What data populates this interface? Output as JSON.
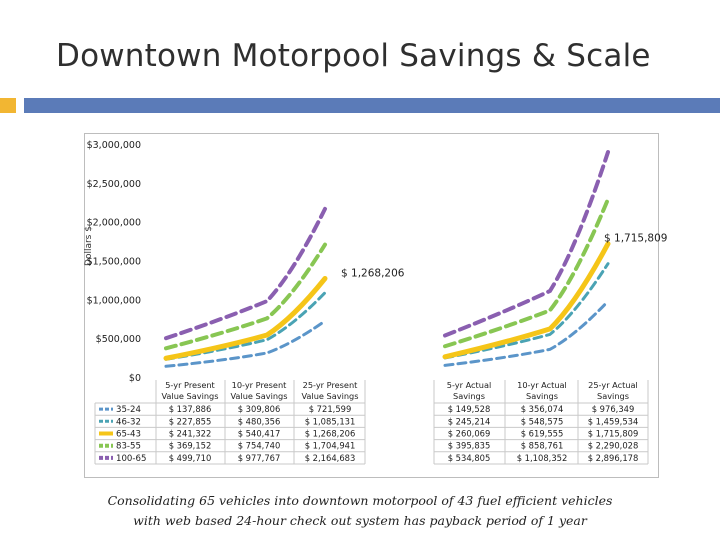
{
  "slide": {
    "title": "Downtown Motorpool Savings & Scale",
    "caption_line1": "Consolidating 65 vehicles into downtown motorpool of 43 fuel efficient vehicles",
    "caption_line2": "with web based 24-hour check out system has payback period of 1 year"
  },
  "colors": {
    "title_bar": "#5b7bb8",
    "accent_square": "#f2b632"
  },
  "chart_data": {
    "type": "line",
    "ylabel": "Dollars $",
    "ylim": [
      0,
      3000000
    ],
    "yticks": [
      0,
      500000,
      1000000,
      1500000,
      2000000,
      2500000,
      3000000
    ],
    "ytick_labels": [
      "$0",
      "$500,000",
      "$1,000,000",
      "$1,500,000",
      "$2,000,000",
      "$2,500,000",
      "$3,000,000"
    ],
    "grid": false,
    "x_groups": [
      {
        "name": "present",
        "categories": [
          "5-yr Present Value Savings",
          "10-yr Present Value Savings",
          "25-yr Present Value Savings"
        ]
      },
      {
        "name": "actual",
        "categories": [
          "5-yr Actual Savings",
          "10-yr Actual Savings",
          "25-yr Actual Savings"
        ]
      }
    ],
    "category_lines": [
      [
        "5-yr Present",
        "Value Savings"
      ],
      [
        "10-yr Present",
        "Value Savings"
      ],
      [
        "25-yr Present",
        "Value Savings"
      ],
      [
        "5-yr Actual",
        "Savings"
      ],
      [
        "10-yr Actual",
        "Savings"
      ],
      [
        "25-yr Actual",
        "Savings"
      ]
    ],
    "series": [
      {
        "name": "35-24",
        "color": "#5b95c9",
        "width": 3,
        "dash": "8 5",
        "values": [
          137886,
          309806,
          721599,
          149528,
          356074,
          976349
        ],
        "labels": [
          "$ 137,886",
          "$ 309,806",
          "$ 721,599",
          "$ 149,528",
          "$ 356,074",
          "$ 976,349"
        ]
      },
      {
        "name": "46-32",
        "color": "#4aa3b4",
        "width": 3,
        "dash": "8 5",
        "values": [
          227855,
          480356,
          1085131,
          245214,
          548575,
          1459534
        ],
        "labels": [
          "$ 227,855",
          "$ 480,356",
          "$ 1,085,131",
          "$ 245,214",
          "$ 548,575",
          "$ 1,459,534"
        ]
      },
      {
        "name": "65-43",
        "color": "#f5c518",
        "width": 5,
        "dash": "",
        "values": [
          241322,
          540417,
          1268206,
          260069,
          619555,
          1715809
        ],
        "labels": [
          "$ 241,322",
          "$ 540,417",
          "$ 1,268,206",
          "$ 260,069",
          "$ 619,555",
          "$ 1,715,809"
        ]
      },
      {
        "name": "83-55",
        "color": "#88c653",
        "width": 4,
        "dash": "10 6",
        "values": [
          369152,
          754740,
          1704941,
          395835,
          858761,
          2290028
        ],
        "labels": [
          "$ 369,152",
          "$ 754,740",
          "$ 1,704,941",
          "$ 395,835",
          "$ 858,761",
          "$ 2,290,028"
        ]
      },
      {
        "name": "100-65",
        "color": "#8a5fb0",
        "width": 4,
        "dash": "10 6",
        "values": [
          499710,
          977767,
          2164683,
          534805,
          1108352,
          2896178
        ],
        "labels": [
          "$ 499,710",
          "$ 977,767",
          "$ 2,164,683",
          "$ 534,805",
          "$ 1,108,352",
          "$ 2,896,178"
        ]
      }
    ],
    "annotations": [
      {
        "text": "$ 1,268,206",
        "series": "65-43",
        "index": 2
      },
      {
        "text": "$ 1,715,809",
        "series": "65-43",
        "index": 5
      }
    ]
  }
}
